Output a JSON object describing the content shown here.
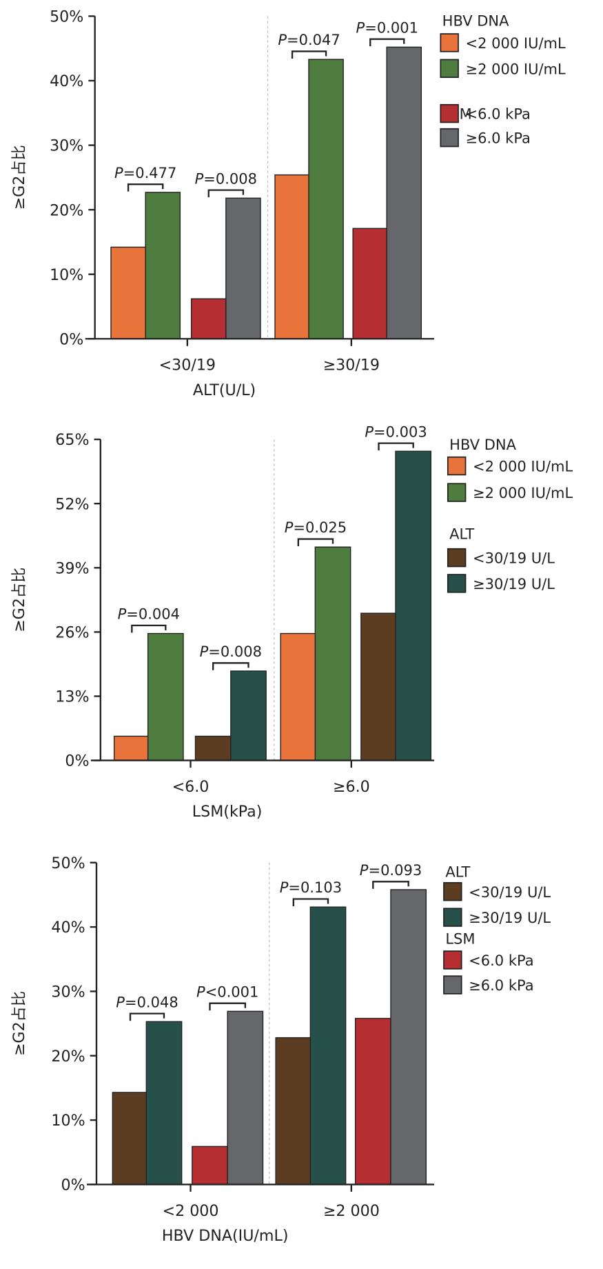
{
  "chart_data": [
    {
      "type": "bar",
      "ylabel": "≥G2占比",
      "xlabel": "ALT(U/L)",
      "ylim": [
        0,
        50
      ],
      "yticks": [
        0,
        10,
        20,
        30,
        40,
        50
      ],
      "ytick_labels": [
        "0%",
        "10%",
        "20%",
        "30%",
        "40%",
        "50%"
      ],
      "categories": [
        "<30/19",
        "≥30/19"
      ],
      "series": [
        {
          "name": "<2 000 IU/mL",
          "group": "HBV DNA",
          "color": "#e8743b",
          "values": [
            14.2,
            25.4
          ]
        },
        {
          "name": "≥2 000 IU/mL",
          "group": "HBV DNA",
          "color": "#4e7d3f",
          "values": [
            22.7,
            43.3
          ]
        },
        {
          "name": "<6.0 kPa",
          "group": "LSM",
          "color": "#b52e31",
          "values": [
            6.2,
            17.1
          ]
        },
        {
          "name": "≥6.0 kPa",
          "group": "LSM",
          "color": "#66676b",
          "values": [
            21.8,
            45.2
          ]
        }
      ],
      "legend_groups": [
        "HBV DNA",
        "LSM"
      ],
      "pvalues": [
        {
          "category": 0,
          "pair": 0,
          "label": "P",
          "value": "=0.477"
        },
        {
          "category": 0,
          "pair": 1,
          "label": "P",
          "value": "=0.008"
        },
        {
          "category": 1,
          "pair": 0,
          "label": "P",
          "value": "=0.047"
        },
        {
          "category": 1,
          "pair": 1,
          "label": "P",
          "value": "=0.001"
        }
      ],
      "legend_placement": "top-right"
    },
    {
      "type": "bar",
      "ylabel": "≥G2占比",
      "xlabel": "LSM(kPa)",
      "ylim": [
        0,
        65
      ],
      "yticks": [
        0,
        13,
        26,
        39,
        52,
        65
      ],
      "ytick_labels": [
        "0%",
        "13%",
        "26%",
        "39%",
        "52%",
        "65%"
      ],
      "categories": [
        "<6.0",
        "≥6.0"
      ],
      "series": [
        {
          "name": "<2 000 IU/mL",
          "group": "HBV DNA",
          "color": "#e8743b",
          "values": [
            4.9,
            25.7
          ]
        },
        {
          "name": "≥2 000 IU/mL",
          "group": "HBV DNA",
          "color": "#4e7d3f",
          "values": [
            25.7,
            43.2
          ]
        },
        {
          "name": "<30/19 U/L",
          "group": "ALT",
          "color": "#5c3d22",
          "values": [
            4.9,
            29.8
          ]
        },
        {
          "name": "≥30/19 U/L",
          "group": "ALT",
          "color": "#27504a",
          "values": [
            18.1,
            62.6
          ]
        }
      ],
      "legend_groups": [
        "HBV DNA",
        "ALT"
      ],
      "pvalues": [
        {
          "category": 0,
          "pair": 0,
          "label": "P",
          "value": "=0.004"
        },
        {
          "category": 0,
          "pair": 1,
          "label": "P",
          "value": "=0.008"
        },
        {
          "category": 1,
          "pair": 0,
          "label": "P",
          "value": "=0.025"
        },
        {
          "category": 1,
          "pair": 1,
          "label": "P",
          "value": "=0.003"
        }
      ],
      "legend_placement": "top-right"
    },
    {
      "type": "bar",
      "ylabel": "≥G2占比",
      "xlabel": "HBV DNA(IU/mL)",
      "ylim": [
        0,
        50
      ],
      "yticks": [
        0,
        10,
        20,
        30,
        40,
        50
      ],
      "ytick_labels": [
        "0%",
        "10%",
        "20%",
        "30%",
        "40%",
        "50%"
      ],
      "categories": [
        "<2 000",
        "≥2 000"
      ],
      "series": [
        {
          "name": "<30/19 U/L",
          "group": "ALT",
          "color": "#5c3d22",
          "values": [
            14.3,
            22.8
          ]
        },
        {
          "name": "≥30/19 U/L",
          "group": "ALT",
          "color": "#27504a",
          "values": [
            25.3,
            43.1
          ]
        },
        {
          "name": "<6.0 kPa",
          "group": "LSM",
          "color": "#b52e31",
          "values": [
            5.9,
            25.8
          ]
        },
        {
          "name": "≥6.0 kPa",
          "group": "LSM",
          "color": "#66676b",
          "values": [
            26.9,
            45.8
          ]
        }
      ],
      "legend_groups": [
        "ALT",
        "LSM"
      ],
      "pvalues": [
        {
          "category": 0,
          "pair": 0,
          "label": "P",
          "value": "=0.048"
        },
        {
          "category": 0,
          "pair": 1,
          "label": "P",
          "value": "<0.001"
        },
        {
          "category": 1,
          "pair": 0,
          "label": "P",
          "value": "=0.103"
        },
        {
          "category": 1,
          "pair": 1,
          "label": "P",
          "value": "=0.093"
        }
      ],
      "legend_placement": "top-right"
    }
  ]
}
